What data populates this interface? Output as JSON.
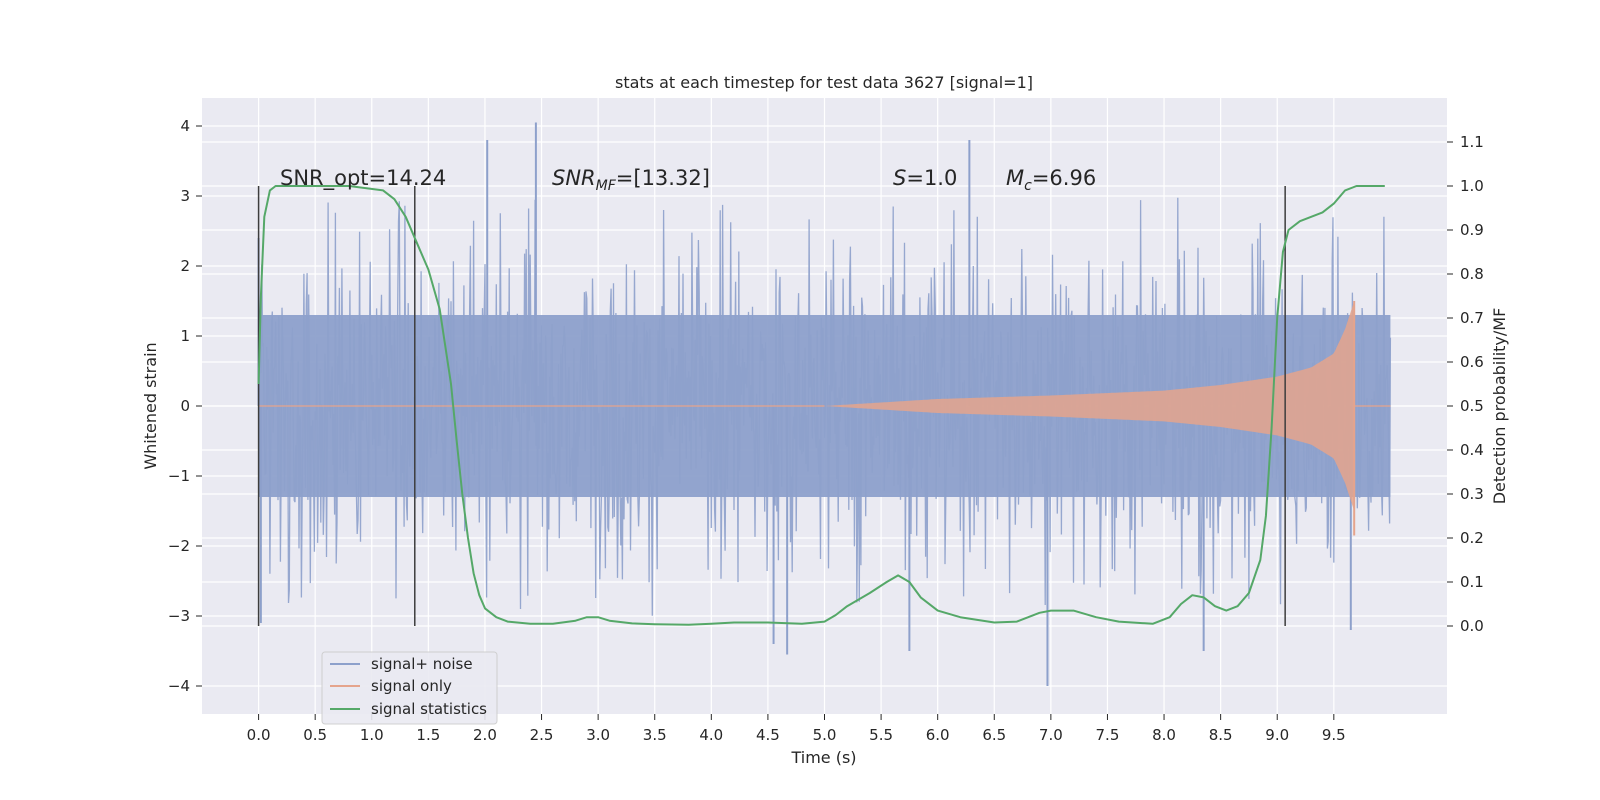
{
  "chart_data": {
    "type": "line",
    "title": "stats at each timestep for test data 3627 [signal=1]",
    "xlabel": "Time (s)",
    "ylabel": "Whitened strain",
    "y2label": "Detection probability/MF",
    "xlim": [
      -0.5,
      10.5
    ],
    "ylim": [
      -4.4,
      4.4
    ],
    "y2lim": [
      -0.2,
      1.2
    ],
    "xticks": [
      "0.0",
      "0.5",
      "1.0",
      "1.5",
      "2.0",
      "2.5",
      "3.0",
      "3.5",
      "4.0",
      "4.5",
      "5.0",
      "5.5",
      "6.0",
      "6.5",
      "7.0",
      "7.5",
      "8.0",
      "8.5",
      "9.0",
      "9.5"
    ],
    "yticks": [
      "4",
      "3",
      "2",
      "1",
      "0",
      "−1",
      "−2",
      "−3",
      "−4"
    ],
    "y2ticks": [
      "1.1",
      "1.0",
      "0.9",
      "0.8",
      "0.7",
      "0.6",
      "0.5",
      "0.4",
      "0.3",
      "0.2",
      "0.1",
      "0.0"
    ],
    "grid": true,
    "legend_placement": "lower-left",
    "annotations": {
      "snr_opt": "SNR_opt=14.24",
      "snr_mf_main": "SNR",
      "snr_mf_sub": "MF",
      "snr_mf_value": "=[13.32]",
      "s_main": "S",
      "s_value": "=1.0",
      "mc_main": "M",
      "mc_sub": "c",
      "mc_value": "=6.96"
    },
    "vertical_markers_x": [
      0.0,
      1.38,
      9.07
    ],
    "series": [
      {
        "name": "signal+ noise",
        "color": "#8da0cb",
        "kind": "noisy-strain",
        "x_range": [
          0.0,
          10.0
        ],
        "band_y": [
          -1.3,
          1.3
        ],
        "envelope_y": [
          -2.6,
          2.6
        ],
        "extremes": [
          [
            0.0,
            2.4
          ],
          [
            0.02,
            -3.1
          ],
          [
            2.02,
            3.8
          ],
          [
            2.45,
            4.05
          ],
          [
            4.55,
            -3.4
          ],
          [
            4.67,
            -3.55
          ],
          [
            5.75,
            -3.5
          ],
          [
            6.28,
            3.8
          ],
          [
            6.97,
            -4.0
          ],
          [
            8.35,
            -3.5
          ],
          [
            9.65,
            -3.2
          ]
        ]
      },
      {
        "name": "signal only",
        "color": "#e5a48c",
        "kind": "chirp",
        "x_range": [
          5.0,
          9.68
        ],
        "amplitude_y": [
          [
            5.0,
            0.0
          ],
          [
            6.0,
            0.1
          ],
          [
            7.0,
            0.15
          ],
          [
            8.0,
            0.22
          ],
          [
            8.5,
            0.3
          ],
          [
            9.0,
            0.42
          ],
          [
            9.3,
            0.55
          ],
          [
            9.5,
            0.75
          ],
          [
            9.6,
            1.1
          ],
          [
            9.68,
            1.5
          ]
        ]
      },
      {
        "name": "signal statistics",
        "color": "#55a868",
        "axis": "right",
        "x": [
          0.0,
          0.02,
          0.05,
          0.1,
          0.15,
          0.2,
          0.4,
          0.8,
          1.1,
          1.2,
          1.3,
          1.4,
          1.5,
          1.6,
          1.7,
          1.75,
          1.8,
          1.85,
          1.9,
          1.95,
          2.0,
          2.1,
          2.2,
          2.4,
          2.6,
          2.8,
          2.9,
          3.0,
          3.1,
          3.3,
          3.5,
          3.8,
          4.0,
          4.2,
          4.5,
          4.8,
          5.0,
          5.1,
          5.2,
          5.4,
          5.55,
          5.65,
          5.75,
          5.85,
          6.0,
          6.2,
          6.5,
          6.7,
          6.9,
          7.0,
          7.2,
          7.4,
          7.6,
          7.9,
          8.05,
          8.15,
          8.25,
          8.35,
          8.45,
          8.55,
          8.65,
          8.75,
          8.85,
          8.9,
          8.95,
          9.0,
          9.05,
          9.1,
          9.2,
          9.3,
          9.4,
          9.5,
          9.6,
          9.7,
          9.95
        ],
        "values": [
          0.55,
          0.75,
          0.93,
          0.99,
          1.0,
          1.0,
          1.0,
          1.0,
          0.99,
          0.97,
          0.93,
          0.87,
          0.81,
          0.72,
          0.55,
          0.42,
          0.3,
          0.2,
          0.12,
          0.07,
          0.04,
          0.02,
          0.01,
          0.005,
          0.005,
          0.012,
          0.02,
          0.02,
          0.012,
          0.006,
          0.004,
          0.003,
          0.005,
          0.008,
          0.008,
          0.005,
          0.01,
          0.025,
          0.045,
          0.075,
          0.1,
          0.115,
          0.1,
          0.065,
          0.035,
          0.02,
          0.008,
          0.01,
          0.03,
          0.035,
          0.035,
          0.02,
          0.01,
          0.005,
          0.02,
          0.05,
          0.07,
          0.065,
          0.045,
          0.035,
          0.045,
          0.075,
          0.15,
          0.25,
          0.45,
          0.7,
          0.85,
          0.9,
          0.92,
          0.93,
          0.94,
          0.96,
          0.99,
          1.0,
          1.0
        ]
      }
    ]
  }
}
